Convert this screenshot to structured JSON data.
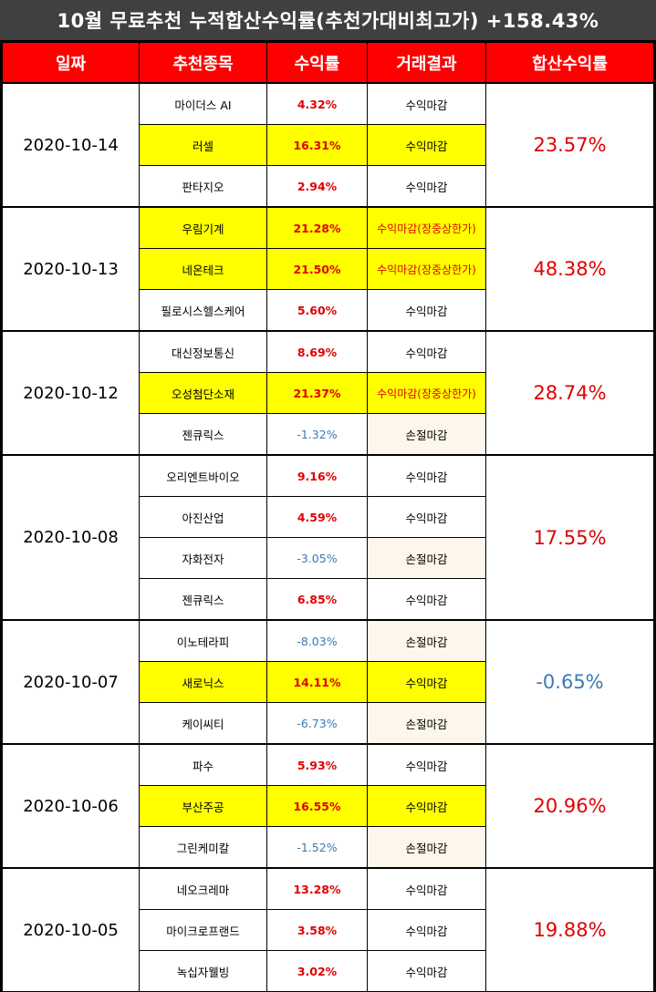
{
  "title": "10월 무료추천 누적합산수익률(추천가대비최고가) +158.43%",
  "headers": [
    "일짜",
    "추천종목",
    "수익률",
    "거래결과",
    "합산수익률"
  ],
  "colors": {
    "profit": "#e00000",
    "loss": "#3a7ab8",
    "highlight": "#ffff00",
    "header_bg": "#ff0000",
    "title_bg": "#404040"
  },
  "groups": [
    {
      "date": "2020-10-14",
      "total": "23.57%",
      "total_sign": "pos",
      "rows": [
        {
          "stock": "마이더스 AI",
          "rate": "4.32%",
          "sign": "pos",
          "result": "수익마감",
          "highlight": false,
          "special": false
        },
        {
          "stock": "러셀",
          "rate": "16.31%",
          "sign": "pos",
          "result": "수익마감",
          "highlight": true,
          "special": false
        },
        {
          "stock": "판타지오",
          "rate": "2.94%",
          "sign": "pos",
          "result": "수익마감",
          "highlight": false,
          "special": false
        }
      ]
    },
    {
      "date": "2020-10-13",
      "total": "48.38%",
      "total_sign": "pos",
      "rows": [
        {
          "stock": "우림기계",
          "rate": "21.28%",
          "sign": "pos",
          "result": "수익마감(장중상한가)",
          "highlight": true,
          "special": true
        },
        {
          "stock": "네온테크",
          "rate": "21.50%",
          "sign": "pos",
          "result": "수익마감(장중상한가)",
          "highlight": true,
          "special": true
        },
        {
          "stock": "필로시스헬스케어",
          "rate": "5.60%",
          "sign": "pos",
          "result": "수익마감",
          "highlight": false,
          "special": false
        }
      ]
    },
    {
      "date": "2020-10-12",
      "total": "28.74%",
      "total_sign": "pos",
      "rows": [
        {
          "stock": "대신정보통신",
          "rate": "8.69%",
          "sign": "pos",
          "result": "수익마감",
          "highlight": false,
          "special": false
        },
        {
          "stock": "오성첨단소재",
          "rate": "21.37%",
          "sign": "pos",
          "result": "수익마감(장중상한가)",
          "highlight": true,
          "special": true
        },
        {
          "stock": "젠큐릭스",
          "rate": "-1.32%",
          "sign": "neg",
          "result": "손절마감",
          "highlight": false,
          "special": false
        }
      ]
    },
    {
      "date": "2020-10-08",
      "total": "17.55%",
      "total_sign": "pos",
      "rows": [
        {
          "stock": "오리엔트바이오",
          "rate": "9.16%",
          "sign": "pos",
          "result": "수익마감",
          "highlight": false,
          "special": false
        },
        {
          "stock": "아진산업",
          "rate": "4.59%",
          "sign": "pos",
          "result": "수익마감",
          "highlight": false,
          "special": false
        },
        {
          "stock": "자화전자",
          "rate": "-3.05%",
          "sign": "neg",
          "result": "손절마감",
          "highlight": false,
          "special": false
        },
        {
          "stock": "젠큐릭스",
          "rate": "6.85%",
          "sign": "pos",
          "result": "수익마감",
          "highlight": false,
          "special": false
        }
      ]
    },
    {
      "date": "2020-10-07",
      "total": "-0.65%",
      "total_sign": "neg",
      "rows": [
        {
          "stock": "이노테라피",
          "rate": "-8.03%",
          "sign": "neg",
          "result": "손절마감",
          "highlight": false,
          "special": false
        },
        {
          "stock": "새로닉스",
          "rate": "14.11%",
          "sign": "pos",
          "result": "수익마감",
          "highlight": true,
          "special": false
        },
        {
          "stock": "케이씨티",
          "rate": "-6.73%",
          "sign": "neg",
          "result": "손절마감",
          "highlight": false,
          "special": false
        }
      ]
    },
    {
      "date": "2020-10-06",
      "total": "20.96%",
      "total_sign": "pos",
      "rows": [
        {
          "stock": "파수",
          "rate": "5.93%",
          "sign": "pos",
          "result": "수익마감",
          "highlight": false,
          "special": false
        },
        {
          "stock": "부산주공",
          "rate": "16.55%",
          "sign": "pos",
          "result": "수익마감",
          "highlight": true,
          "special": false
        },
        {
          "stock": "그린케미칼",
          "rate": "-1.52%",
          "sign": "neg",
          "result": "손절마감",
          "highlight": false,
          "special": false
        }
      ]
    },
    {
      "date": "2020-10-05",
      "total": "19.88%",
      "total_sign": "pos",
      "rows": [
        {
          "stock": "네오크레마",
          "rate": "13.28%",
          "sign": "pos",
          "result": "수익마감",
          "highlight": false,
          "special": false
        },
        {
          "stock": "마이크로프랜드",
          "rate": "3.58%",
          "sign": "pos",
          "result": "수익마감",
          "highlight": false,
          "special": false
        },
        {
          "stock": "녹십자웰빙",
          "rate": "3.02%",
          "sign": "pos",
          "result": "수익마감",
          "highlight": false,
          "special": false
        }
      ]
    }
  ]
}
